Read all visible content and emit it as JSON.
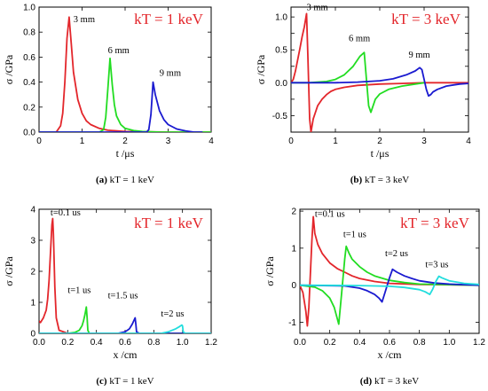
{
  "chart_data": [
    {
      "type": "line",
      "caption_letter": "(a)",
      "caption_text": " kT = 1 keV",
      "note": "kT = 1 keV",
      "xlabel": "t /μs",
      "ylabel": "σ /GPa",
      "xlim": [
        0,
        4
      ],
      "ylim": [
        0,
        1.0
      ],
      "xticks": [
        0,
        1,
        2,
        3,
        4
      ],
      "yticks": [
        0.0,
        0.2,
        0.4,
        0.6,
        0.8,
        1.0
      ],
      "xtick_labels": [
        "0",
        "1",
        "2",
        "3",
        "4"
      ],
      "ytick_labels": [
        "0.0",
        "0.2",
        "0.4",
        "0.6",
        "0.8",
        "1.0"
      ],
      "series": [
        {
          "name": "3 mm",
          "color": "#e3262b",
          "x": [
            0,
            0.4,
            0.5,
            0.55,
            0.6,
            0.65,
            0.7,
            0.75,
            0.8,
            0.9,
            1.0,
            1.1,
            1.2,
            1.4,
            1.6,
            2.0,
            3.0,
            4.0
          ],
          "y": [
            0,
            0.0,
            0.05,
            0.15,
            0.4,
            0.75,
            0.92,
            0.7,
            0.48,
            0.26,
            0.15,
            0.09,
            0.06,
            0.03,
            0.015,
            0.005,
            0.0,
            0.0
          ]
        },
        {
          "name": "6 mm",
          "color": "#22dd22",
          "x": [
            0,
            1.4,
            1.5,
            1.55,
            1.6,
            1.65,
            1.7,
            1.75,
            1.8,
            1.9,
            2.0,
            2.2,
            2.4,
            2.8,
            4.0
          ],
          "y": [
            0,
            0.0,
            0.02,
            0.12,
            0.35,
            0.59,
            0.38,
            0.22,
            0.13,
            0.06,
            0.03,
            0.012,
            0.005,
            0.0,
            0.0
          ]
        },
        {
          "name": "9 mm",
          "color": "#1a1ad0",
          "x": [
            0,
            2.5,
            2.55,
            2.6,
            2.65,
            2.7,
            2.8,
            2.9,
            3.0,
            3.2,
            3.4,
            3.6,
            3.8
          ],
          "y": [
            0,
            0.0,
            0.02,
            0.14,
            0.4,
            0.3,
            0.17,
            0.1,
            0.06,
            0.025,
            0.01,
            0.0,
            0.0
          ]
        }
      ],
      "annotations": [
        {
          "text": "3 mm",
          "x": 0.8,
          "y": 0.88
        },
        {
          "text": "6 mm",
          "x": 1.6,
          "y": 0.63
        },
        {
          "text": "9 mm",
          "x": 2.8,
          "y": 0.45
        }
      ]
    },
    {
      "type": "line",
      "caption_letter": "(b)",
      "caption_text": " kT = 3 keV",
      "note": "kT = 3 keV",
      "xlabel": "t /μs",
      "ylabel": "σ /GPa",
      "xlim": [
        0,
        4
      ],
      "ylim": [
        -0.75,
        1.15
      ],
      "xticks": [
        0,
        1,
        2,
        3,
        4
      ],
      "yticks": [
        -0.5,
        -0.25,
        0.0,
        0.25,
        0.5,
        0.75,
        1.0
      ],
      "xtick_labels": [
        "0",
        "1",
        "2",
        "3",
        "4"
      ],
      "ytick_labels": [
        "-0.5",
        "",
        "0.0",
        "",
        "0.5",
        "",
        "1.0"
      ],
      "series": [
        {
          "name": "3 mm",
          "color": "#e3262b",
          "x": [
            0,
            0.05,
            0.1,
            0.15,
            0.2,
            0.25,
            0.3,
            0.35,
            0.38,
            0.42,
            0.45,
            0.5,
            0.6,
            0.7,
            0.8,
            0.9,
            1.0,
            1.2,
            1.5,
            2.0,
            2.5,
            3.0,
            4.0
          ],
          "y": [
            0,
            0.05,
            0.18,
            0.35,
            0.52,
            0.7,
            0.85,
            1.05,
            0.4,
            -0.55,
            -0.75,
            -0.55,
            -0.35,
            -0.25,
            -0.18,
            -0.13,
            -0.1,
            -0.07,
            -0.04,
            -0.02,
            -0.01,
            0.0,
            0.0
          ]
        },
        {
          "name": "6 mm",
          "color": "#22dd22",
          "x": [
            0,
            0.4,
            0.8,
            1.0,
            1.2,
            1.4,
            1.55,
            1.65,
            1.7,
            1.75,
            1.8,
            1.85,
            1.9,
            2.0,
            2.2,
            2.5,
            3.0
          ],
          "y": [
            0,
            0.0,
            0.02,
            0.05,
            0.12,
            0.25,
            0.4,
            0.46,
            0.05,
            -0.35,
            -0.45,
            -0.35,
            -0.25,
            -0.17,
            -0.1,
            -0.05,
            0.0
          ]
        },
        {
          "name": "9 mm",
          "color": "#1a1ad0",
          "x": [
            0,
            1.0,
            1.5,
            2.0,
            2.3,
            2.6,
            2.8,
            2.9,
            2.95,
            3.0,
            3.05,
            3.1,
            3.15,
            3.2,
            3.3,
            3.5,
            3.8,
            4.0
          ],
          "y": [
            0,
            0.0,
            0.01,
            0.03,
            0.06,
            0.12,
            0.18,
            0.23,
            0.2,
            0.05,
            -0.1,
            -0.2,
            -0.18,
            -0.14,
            -0.1,
            -0.05,
            -0.02,
            -0.01
          ]
        }
      ],
      "annotations": [
        {
          "text": "3 mm",
          "x": 0.35,
          "y": 1.1
        },
        {
          "text": "6 mm",
          "x": 1.3,
          "y": 0.63
        },
        {
          "text": "9 mm",
          "x": 2.65,
          "y": 0.38
        }
      ]
    },
    {
      "type": "line",
      "caption_letter": "(c)",
      "caption_text": " kT = 1 keV",
      "note": "kT = 1 keV",
      "xlabel": "x /cm",
      "ylabel": "σ /GPa",
      "xlim": [
        0,
        1.2
      ],
      "ylim": [
        0,
        4
      ],
      "xticks": [
        0,
        0.2,
        0.4,
        0.6,
        0.8,
        1.0,
        1.2
      ],
      "yticks": [
        0,
        1,
        2,
        3,
        4
      ],
      "xtick_labels": [
        "0.0",
        "0.2",
        "0.4",
        "0.6",
        "0.8",
        "1.0",
        "1.2"
      ],
      "ytick_labels": [
        "0",
        "1",
        "2",
        "3",
        "4"
      ],
      "series": [
        {
          "name": "t=0.1 us",
          "color": "#e3262b",
          "x": [
            0,
            0.01,
            0.03,
            0.05,
            0.06,
            0.07,
            0.08,
            0.09,
            0.095,
            0.1,
            0.11,
            0.12,
            0.14,
            0.2,
            1.2
          ],
          "y": [
            0.4,
            0.35,
            0.5,
            0.75,
            1.1,
            1.7,
            2.6,
            3.5,
            3.7,
            3.2,
            1.5,
            0.5,
            0.1,
            0.0,
            0.0
          ]
        },
        {
          "name": "t=1 us",
          "color": "#22dd22",
          "x": [
            0,
            0.2,
            0.25,
            0.28,
            0.3,
            0.31,
            0.32,
            0.33,
            0.335,
            0.34,
            0.35,
            0.4,
            1.2
          ],
          "y": [
            0,
            0.0,
            0.03,
            0.1,
            0.25,
            0.4,
            0.6,
            0.85,
            0.5,
            0.1,
            0.0,
            0.0,
            0.0
          ]
        },
        {
          "name": "t=1.5 us",
          "color": "#1a1ad0",
          "x": [
            0,
            0.55,
            0.6,
            0.63,
            0.65,
            0.66,
            0.67,
            0.675,
            0.68,
            0.7,
            1.2
          ],
          "y": [
            0,
            0.0,
            0.05,
            0.15,
            0.3,
            0.4,
            0.5,
            0.3,
            0.05,
            0.0,
            0.0
          ]
        },
        {
          "name": "t=2 us",
          "color": "#22dddd",
          "x": [
            0,
            0.85,
            0.9,
            0.95,
            0.98,
            0.995,
            1.0,
            1.005,
            1.02,
            1.2
          ],
          "y": [
            0,
            0.0,
            0.05,
            0.14,
            0.22,
            0.27,
            0.24,
            0.05,
            0.0,
            0.0
          ]
        }
      ],
      "annotations": [
        {
          "text": "t=0.1 us",
          "x": 0.08,
          "y": 3.8
        },
        {
          "text": "t=1 us",
          "x": 0.2,
          "y": 1.3
        },
        {
          "text": "t=1.5 us",
          "x": 0.48,
          "y": 1.13
        },
        {
          "text": "t=2 us",
          "x": 0.85,
          "y": 0.55
        }
      ]
    },
    {
      "type": "line",
      "caption_letter": "(d)",
      "caption_text": " kT = 3 keV",
      "note": "kT = 3 keV",
      "xlabel": "x /cm",
      "ylabel": "σ /GPa",
      "xlim": [
        0,
        1.2
      ],
      "ylim": [
        -1.3,
        2.05
      ],
      "xticks": [
        0,
        0.2,
        0.4,
        0.6,
        0.8,
        1.0,
        1.2
      ],
      "yticks": [
        -1,
        0,
        1,
        2
      ],
      "xtick_labels": [
        "0.0",
        "0.2",
        "0.4",
        "0.6",
        "0.8",
        "1.0",
        "1.2"
      ],
      "ytick_labels": [
        "-1",
        "0",
        "1",
        "2"
      ],
      "series": [
        {
          "name": "t=0.1 us",
          "color": "#e3262b",
          "x": [
            0,
            0.02,
            0.04,
            0.05,
            0.06,
            0.07,
            0.08,
            0.09,
            0.1,
            0.12,
            0.15,
            0.2,
            0.25,
            0.3,
            0.35,
            0.4,
            0.5,
            0.6,
            0.8,
            1.2
          ],
          "y": [
            0,
            -0.2,
            -0.7,
            -1.1,
            -0.6,
            0.3,
            1.2,
            1.85,
            1.4,
            1.1,
            0.85,
            0.6,
            0.45,
            0.35,
            0.25,
            0.18,
            0.1,
            0.05,
            0.02,
            0.0
          ]
        },
        {
          "name": "t=1 us",
          "color": "#22dd22",
          "x": [
            0,
            0.1,
            0.15,
            0.2,
            0.23,
            0.25,
            0.26,
            0.28,
            0.3,
            0.31,
            0.33,
            0.35,
            0.4,
            0.45,
            0.5,
            0.6,
            0.7,
            0.8,
            1.2
          ],
          "y": [
            0,
            -0.05,
            -0.15,
            -0.35,
            -0.6,
            -0.9,
            -1.05,
            -0.2,
            0.7,
            1.05,
            0.85,
            0.7,
            0.5,
            0.35,
            0.25,
            0.13,
            0.07,
            0.03,
            0.0
          ]
        },
        {
          "name": "t=2 us",
          "color": "#1a1ad0",
          "x": [
            0,
            0.3,
            0.4,
            0.45,
            0.5,
            0.53,
            0.55,
            0.57,
            0.6,
            0.62,
            0.65,
            0.7,
            0.75,
            0.8,
            0.9,
            1.0,
            1.2
          ],
          "y": [
            0,
            -0.02,
            -0.08,
            -0.15,
            -0.25,
            -0.35,
            -0.45,
            -0.2,
            0.2,
            0.43,
            0.35,
            0.25,
            0.18,
            0.12,
            0.06,
            0.03,
            0.0
          ]
        },
        {
          "name": "t=3 us",
          "color": "#22dddd",
          "x": [
            0,
            0.4,
            0.6,
            0.7,
            0.8,
            0.84,
            0.87,
            0.89,
            0.91,
            0.93,
            0.95,
            1.0,
            1.1,
            1.2
          ],
          "y": [
            0,
            -0.01,
            -0.03,
            -0.06,
            -0.12,
            -0.18,
            -0.25,
            -0.1,
            0.1,
            0.24,
            0.2,
            0.12,
            0.05,
            0.02
          ]
        }
      ],
      "annotations": [
        {
          "text": "t=0.1 us",
          "x": 0.1,
          "y": 1.85
        },
        {
          "text": "t=1 us",
          "x": 0.29,
          "y": 1.3
        },
        {
          "text": "t=2 us",
          "x": 0.57,
          "y": 0.78
        },
        {
          "text": "t=3 us",
          "x": 0.84,
          "y": 0.48
        }
      ]
    }
  ]
}
